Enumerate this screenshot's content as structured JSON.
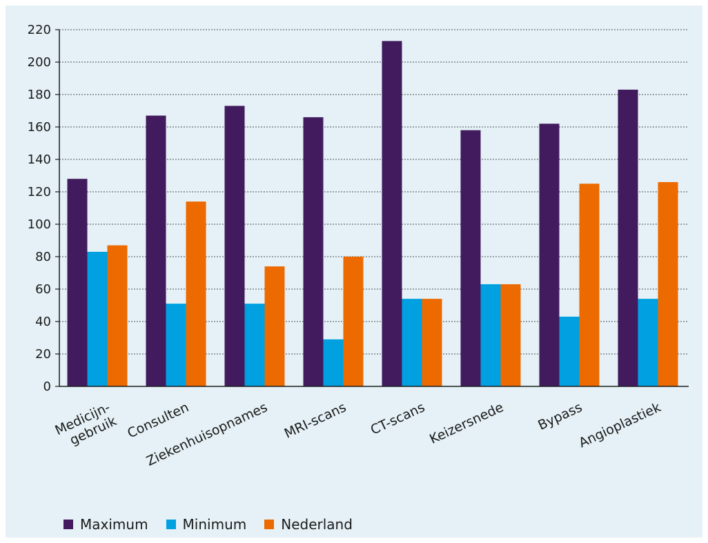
{
  "chart_data": {
    "type": "bar",
    "categories": [
      "Medicijn-\ngebruik",
      "Consulten",
      "Ziekenhuisopnames",
      "MRI-scans",
      "CT-scans",
      "Keizersnede",
      "Bypass",
      "Angioplastiek"
    ],
    "series": [
      {
        "name": "Maximum",
        "color": "#421b5e",
        "values": [
          128,
          167,
          173,
          166,
          213,
          158,
          162,
          183
        ]
      },
      {
        "name": "Minimum",
        "color": "#00a0e1",
        "values": [
          83,
          51,
          51,
          29,
          54,
          63,
          43,
          54
        ]
      },
      {
        "name": "Nederland",
        "color": "#ec6a00",
        "values": [
          87,
          114,
          74,
          80,
          54,
          63,
          125,
          126
        ]
      }
    ],
    "ylim": [
      0,
      220
    ],
    "yticks": [
      0,
      20,
      40,
      60,
      80,
      100,
      120,
      140,
      160,
      180,
      200,
      220
    ],
    "grid": true,
    "legend_position": "bottom-left"
  }
}
